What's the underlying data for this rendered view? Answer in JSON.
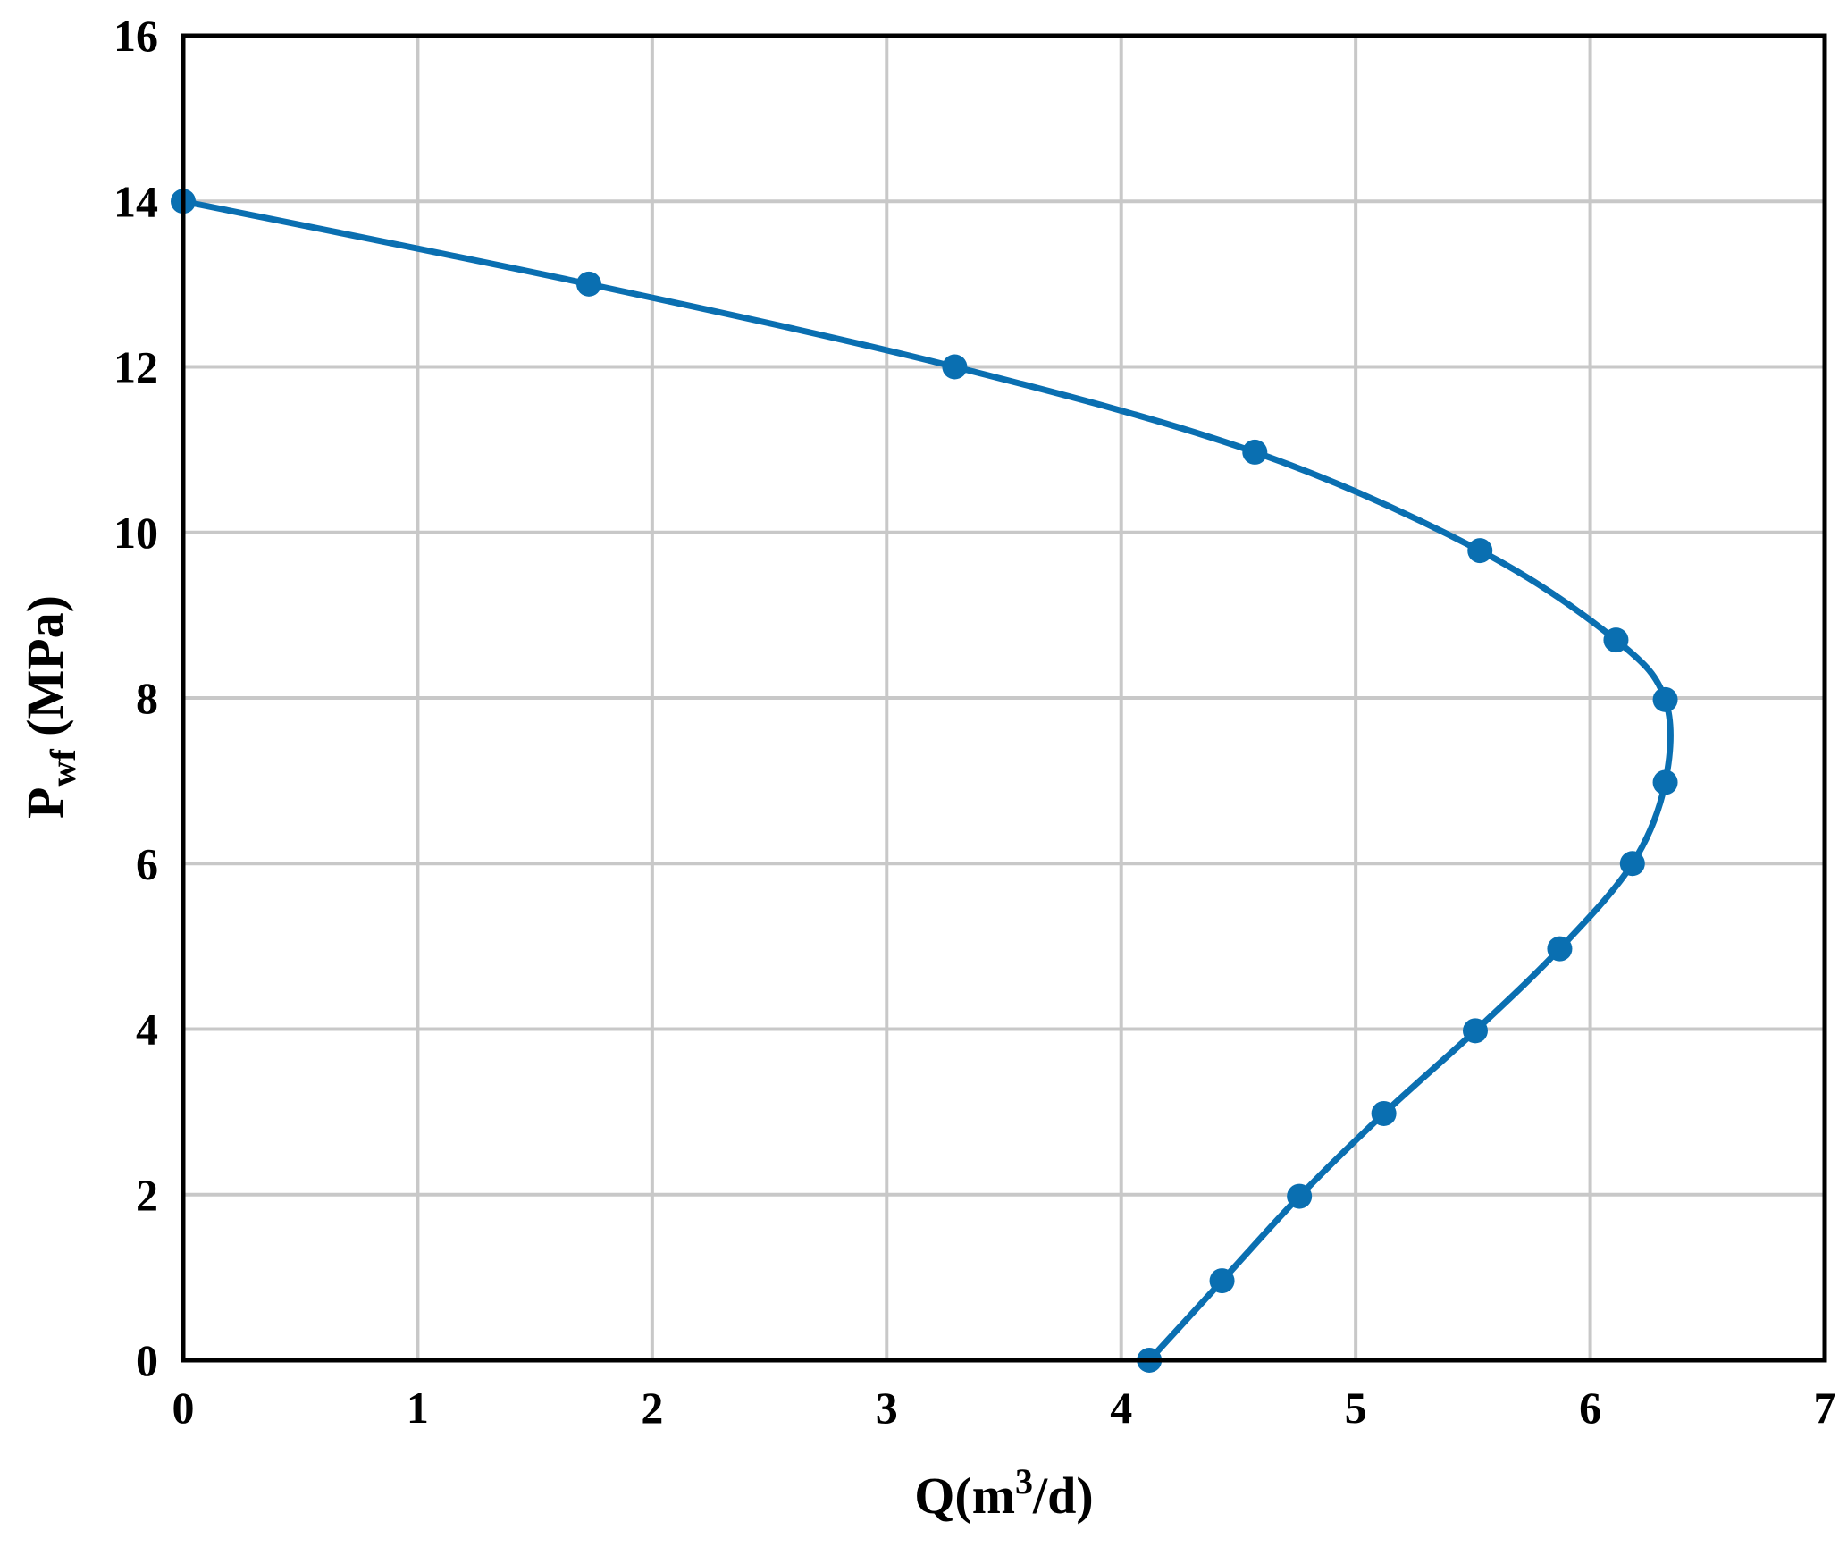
{
  "chart_data": {
    "type": "line",
    "title": "",
    "xlabel": {
      "base": "Q(m",
      "sup": "3",
      "tail": "/d)"
    },
    "ylabel": {
      "base": "P",
      "sub": "wf",
      "tail": " (MPa)"
    },
    "xlim": [
      0,
      7
    ],
    "ylim": [
      0,
      16
    ],
    "x_ticks": [
      0,
      1,
      2,
      3,
      4,
      5,
      6,
      7
    ],
    "y_ticks": [
      0,
      2,
      4,
      6,
      8,
      10,
      12,
      14,
      16
    ],
    "grid": true,
    "legend": "none",
    "series": [
      {
        "color": "#0a6fb1",
        "marker": "circle",
        "points": [
          {
            "x": 0.0,
            "y": 14.0
          },
          {
            "x": 1.73,
            "y": 13.0
          },
          {
            "x": 3.29,
            "y": 12.0
          },
          {
            "x": 4.57,
            "y": 10.97
          },
          {
            "x": 5.53,
            "y": 9.78
          },
          {
            "x": 6.11,
            "y": 8.7
          },
          {
            "x": 6.32,
            "y": 7.98
          },
          {
            "x": 6.32,
            "y": 6.98
          },
          {
            "x": 6.18,
            "y": 6.0
          },
          {
            "x": 5.87,
            "y": 4.97
          },
          {
            "x": 5.51,
            "y": 3.98
          },
          {
            "x": 5.12,
            "y": 2.98
          },
          {
            "x": 4.76,
            "y": 1.98
          },
          {
            "x": 4.43,
            "y": 0.96
          },
          {
            "x": 4.12,
            "y": 0.0
          }
        ]
      }
    ]
  }
}
